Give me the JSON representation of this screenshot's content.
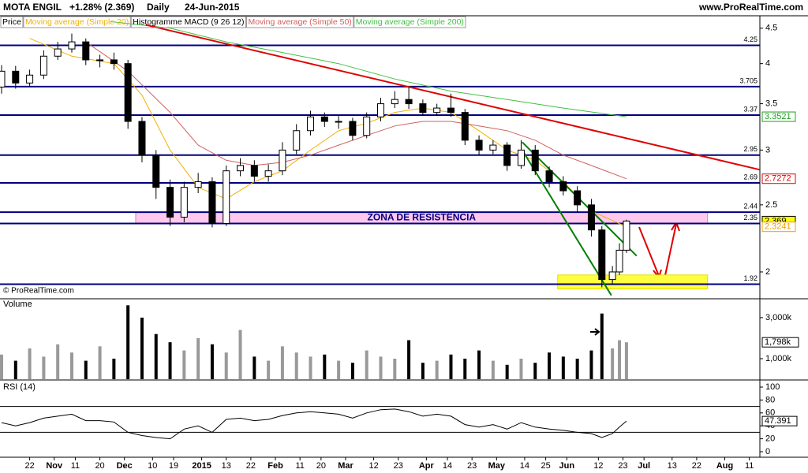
{
  "header": {
    "symbol": "MOTA ENGIL",
    "change": "+1.28% (2.369)",
    "period": "Daily",
    "date": "24-Jun-2015",
    "site": "www.ProRealTime.com",
    "copyright": "© ProRealTime.com"
  },
  "chart_data": [
    {
      "type": "candlestick",
      "name": "Price",
      "indicator": "Histogramme MACD (9 26 12)",
      "log_scale": true,
      "xlim": [
        0,
        216
      ],
      "ylim": [
        1.834,
        4.69
      ],
      "yticks": [
        4.5,
        4,
        3.5,
        3,
        2.5,
        2
      ],
      "x": [
        0,
        4,
        8,
        12,
        16,
        20,
        24,
        28,
        32,
        36,
        40,
        44,
        48,
        52,
        56,
        60,
        64,
        68,
        72,
        76,
        80,
        84,
        88,
        92,
        96,
        100,
        104,
        108,
        112,
        116,
        120,
        124,
        128,
        132,
        136,
        140,
        144,
        148,
        152,
        156,
        160,
        164,
        168,
        171,
        174,
        176,
        178
      ],
      "open": [
        3.7,
        3.9,
        3.75,
        3.85,
        4.1,
        4.2,
        4.3,
        4.05,
        4.05,
        4.0,
        3.3,
        2.95,
        2.65,
        2.4,
        2.65,
        2.7,
        2.35,
        2.8,
        2.85,
        2.75,
        2.8,
        3.0,
        3.2,
        3.35,
        3.3,
        3.3,
        3.15,
        3.35,
        3.5,
        3.55,
        3.5,
        3.4,
        3.45,
        3.4,
        3.1,
        3.0,
        3.05,
        2.85,
        3.0,
        2.8,
        2.7,
        2.62,
        2.5,
        2.3,
        1.95,
        2.0,
        2.15
      ],
      "high": [
        3.98,
        3.97,
        3.92,
        4.18,
        4.3,
        4.42,
        4.35,
        4.12,
        4.15,
        4.05,
        3.35,
        3.0,
        2.72,
        2.7,
        2.78,
        2.74,
        2.85,
        2.92,
        2.9,
        2.86,
        3.08,
        3.27,
        3.42,
        3.4,
        3.36,
        3.34,
        3.4,
        3.57,
        3.65,
        3.7,
        3.55,
        3.5,
        3.62,
        3.44,
        3.15,
        3.1,
        3.08,
        3.1,
        3.05,
        2.84,
        2.75,
        2.66,
        2.55,
        2.33,
        2.04,
        2.2,
        2.38
      ],
      "low": [
        3.62,
        3.68,
        3.7,
        3.8,
        4.05,
        4.15,
        3.98,
        3.95,
        3.92,
        3.22,
        2.88,
        2.55,
        2.33,
        2.36,
        2.6,
        2.32,
        2.33,
        2.75,
        2.7,
        2.7,
        2.76,
        2.96,
        3.15,
        3.24,
        3.22,
        3.1,
        3.12,
        3.3,
        3.45,
        3.44,
        3.36,
        3.36,
        3.35,
        3.05,
        2.95,
        2.96,
        2.8,
        2.82,
        2.76,
        2.65,
        2.58,
        2.44,
        2.25,
        1.9,
        1.92,
        1.98,
        2.13
      ],
      "close": [
        3.9,
        3.75,
        3.85,
        4.1,
        4.2,
        4.3,
        4.05,
        4.05,
        4.0,
        3.3,
        2.95,
        2.65,
        2.4,
        2.65,
        2.7,
        2.35,
        2.8,
        2.85,
        2.75,
        2.8,
        3.0,
        3.2,
        3.35,
        3.3,
        3.3,
        3.15,
        3.35,
        3.5,
        3.55,
        3.5,
        3.4,
        3.45,
        3.4,
        3.1,
        3.0,
        3.05,
        2.85,
        3.0,
        2.8,
        2.7,
        2.62,
        2.5,
        2.3,
        1.95,
        2.0,
        2.15,
        2.369
      ],
      "series": [
        {
          "name": "Moving average (Simple 20)",
          "color": "#f0b000",
          "x": [
            8,
            20,
            32,
            40,
            48,
            56,
            64,
            72,
            80,
            88,
            96,
            104,
            112,
            120,
            128,
            136,
            144,
            152,
            160,
            168,
            178
          ],
          "values": [
            4.35,
            4.1,
            4.0,
            3.6,
            3.0,
            2.65,
            2.55,
            2.7,
            2.8,
            3.0,
            3.2,
            3.28,
            3.4,
            3.45,
            3.4,
            3.2,
            3.0,
            2.9,
            2.7,
            2.45,
            2.3241
          ]
        },
        {
          "name": "Moving average (Simple 50)",
          "color": "#d06060",
          "x": [
            24,
            36,
            48,
            56,
            64,
            72,
            80,
            88,
            96,
            104,
            112,
            120,
            128,
            136,
            144,
            152,
            160,
            168,
            178
          ],
          "values": [
            4.3,
            3.9,
            3.4,
            3.05,
            2.9,
            2.85,
            2.88,
            2.95,
            3.05,
            3.15,
            3.25,
            3.3,
            3.3,
            3.25,
            3.2,
            3.1,
            2.95,
            2.85,
            2.7272
          ]
        },
        {
          "name": "Moving average (Simple 200)",
          "color": "#40c040",
          "x": [
            31,
            48,
            64,
            80,
            96,
            112,
            128,
            144,
            160,
            178
          ],
          "values": [
            4.6,
            4.5,
            4.3,
            4.15,
            4.0,
            3.8,
            3.65,
            3.55,
            3.45,
            3.3521
          ]
        }
      ],
      "levels": [
        4.25,
        3.705,
        3.37,
        2.95,
        2.69,
        2.44,
        2.35,
        1.92
      ],
      "trendlines": [
        {
          "x": [
            41.1,
            216
          ],
          "y": [
            4.55,
            2.81
          ],
          "color": "#e00000"
        },
        {
          "x": [
            148.3,
            180.9
          ],
          "y": [
            3.08,
            2.11
          ],
          "color": "#008000"
        },
        {
          "x": [
            148.3,
            173.7
          ],
          "y": [
            3.0,
            1.85
          ],
          "color": "#008000"
        }
      ],
      "zones": [
        {
          "x": [
            38.2,
            201.1
          ],
          "y": [
            2.35,
            2.44
          ],
          "color": "#ffc8ec",
          "label": "ZONA DE RESISTÊNCIA"
        },
        {
          "x": [
            158.4,
            201.1
          ],
          "y": [
            1.89,
            1.98
          ],
          "color": "#ffff40"
        }
      ]
    },
    {
      "type": "bar",
      "title": "Volume",
      "xlim": [
        0,
        216
      ],
      "ylim": [
        0,
        3880
      ],
      "yticks": [
        {
          "value": 3000,
          "label": "3,000k"
        },
        {
          "value": 1000,
          "label": "1,000k"
        }
      ],
      "x": [
        0,
        4,
        8,
        12,
        16,
        20,
        24,
        28,
        32,
        36,
        40,
        44,
        48,
        52,
        56,
        60,
        64,
        68,
        72,
        76,
        80,
        84,
        88,
        92,
        96,
        100,
        104,
        108,
        112,
        116,
        120,
        124,
        128,
        132,
        136,
        140,
        144,
        148,
        152,
        156,
        160,
        164,
        168,
        171,
        174,
        176,
        178
      ],
      "values": [
        1200,
        900,
        1500,
        1100,
        1700,
        1300,
        900,
        1600,
        1000,
        3600,
        3000,
        2200,
        1800,
        1400,
        2000,
        1700,
        1300,
        2400,
        1100,
        900,
        1600,
        1300,
        1100,
        1200,
        900,
        800,
        1400,
        1100,
        1000,
        1900,
        800,
        900,
        1200,
        1000,
        1400,
        900,
        700,
        1000,
        800,
        1300,
        1100,
        1000,
        1400,
        3200,
        1500,
        1900,
        1798
      ],
      "value_label": "1,798k"
    },
    {
      "type": "line",
      "title": "RSI (14)",
      "xlim": [
        0,
        216
      ],
      "ylim": [
        0,
        100
      ],
      "yticks": [
        100,
        80,
        60,
        40,
        20,
        0
      ],
      "levels": [
        70,
        30
      ],
      "color": "#000000",
      "x": [
        0,
        4,
        8,
        12,
        16,
        20,
        24,
        28,
        32,
        36,
        40,
        44,
        48,
        52,
        56,
        60,
        64,
        68,
        72,
        76,
        80,
        84,
        88,
        92,
        96,
        100,
        104,
        108,
        112,
        116,
        120,
        124,
        128,
        132,
        136,
        140,
        144,
        148,
        152,
        156,
        160,
        164,
        168,
        171,
        174,
        176,
        178
      ],
      "values": [
        45,
        40,
        45,
        52,
        55,
        58,
        48,
        48,
        46,
        30,
        25,
        22,
        20,
        35,
        40,
        30,
        50,
        52,
        48,
        50,
        56,
        60,
        62,
        60,
        58,
        52,
        60,
        65,
        66,
        62,
        55,
        58,
        55,
        42,
        38,
        42,
        35,
        45,
        38,
        35,
        33,
        30,
        28,
        22,
        28,
        38,
        47.391
      ],
      "xticks": [
        {
          "value": 8,
          "label": "22"
        },
        {
          "value": 15,
          "label": "Nov"
        },
        {
          "value": 21,
          "label": "11"
        },
        {
          "value": 28,
          "label": "20"
        },
        {
          "value": 35,
          "label": "Dec"
        },
        {
          "value": 43,
          "label": "10"
        },
        {
          "value": 49,
          "label": "19"
        },
        {
          "value": 57,
          "label": "2015"
        },
        {
          "value": 64,
          "label": "13"
        },
        {
          "value": 71,
          "label": "22"
        },
        {
          "value": 78,
          "label": "Feb"
        },
        {
          "value": 85,
          "label": "11"
        },
        {
          "value": 91,
          "label": "20"
        },
        {
          "value": 98,
          "label": "Mar"
        },
        {
          "value": 106,
          "label": "12"
        },
        {
          "value": 113,
          "label": "23"
        },
        {
          "value": 121,
          "label": "Apr"
        },
        {
          "value": 127,
          "label": "14"
        },
        {
          "value": 134,
          "label": "23"
        },
        {
          "value": 141,
          "label": "May"
        },
        {
          "value": 149,
          "label": "14"
        },
        {
          "value": 155,
          "label": "25"
        },
        {
          "value": 161,
          "label": "Jun"
        },
        {
          "value": 170,
          "label": "12"
        },
        {
          "value": 177,
          "label": "23"
        },
        {
          "value": 183,
          "label": "Jul"
        },
        {
          "value": 191,
          "label": "13"
        },
        {
          "value": 198,
          "label": "22"
        },
        {
          "value": 206,
          "label": "Aug"
        },
        {
          "value": 213,
          "label": "11"
        }
      ]
    }
  ]
}
